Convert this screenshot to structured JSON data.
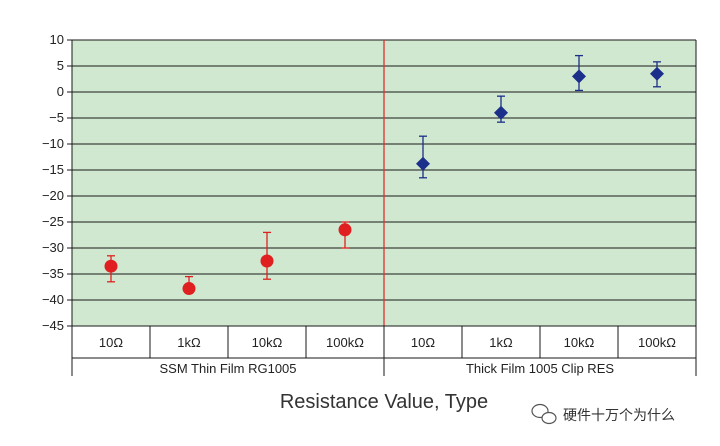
{
  "chart_data": {
    "type": "scatter",
    "xlabel": "Resistance Value, Type",
    "ylim": [
      -45,
      10
    ],
    "yticks": [
      10,
      5,
      0,
      -5,
      -10,
      -15,
      -20,
      -25,
      -30,
      -35,
      -40,
      -45
    ],
    "grid": true,
    "background_color": "#cfe8cf",
    "divider_color": "#e03030",
    "categories": [
      "10Ω",
      "1kΩ",
      "10kΩ",
      "100kΩ",
      "10Ω",
      "1kΩ",
      "10kΩ",
      "100kΩ"
    ],
    "groups": [
      {
        "label": "SSM Thin Film RG1005",
        "from": 0,
        "to": 3
      },
      {
        "label": "Thick Film 1005 Clip RES",
        "from": 4,
        "to": 7
      }
    ],
    "series": [
      {
        "marker": "circle",
        "color": "#e02020",
        "category_index": [
          0,
          1,
          2,
          3
        ],
        "values": [
          -33.5,
          -37.8,
          -32.5,
          -26.5
        ],
        "err_high": [
          -31.5,
          -35.5,
          -27,
          -25
        ],
        "err_low": [
          -36.5,
          -38.5,
          -36,
          -30
        ]
      },
      {
        "marker": "diamond",
        "color": "#1c2f8a",
        "category_index": [
          4,
          5,
          6,
          7
        ],
        "values": [
          -13.8,
          -4,
          3,
          3.5
        ],
        "err_high": [
          -8.5,
          -0.8,
          7,
          5.8
        ],
        "err_low": [
          -16.5,
          -5.8,
          0.3,
          1
        ]
      }
    ]
  },
  "watermark": {
    "text": "硬件十万个为什么",
    "icon": "wechat-icon"
  }
}
